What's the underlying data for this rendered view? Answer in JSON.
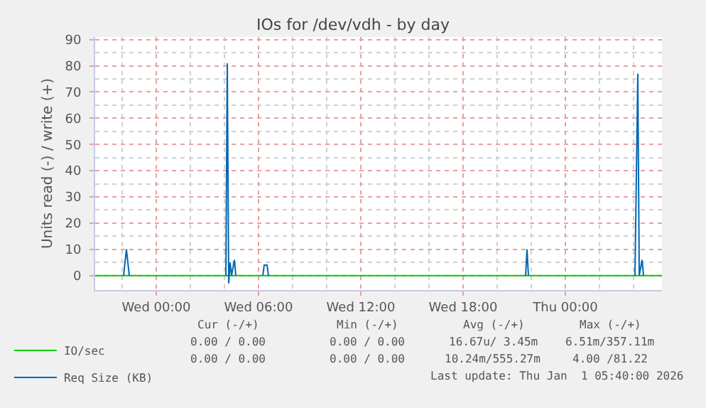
{
  "chart_data": {
    "type": "line",
    "title": "IOs for /dev/vdh - by day",
    "ylabel": "Units read (-) / write (+)",
    "series": [
      {
        "name": "IO/sec",
        "color": "#00cc00",
        "x": [
          "2025-12-30T20:25",
          "2026-01-01T05:40"
        ],
        "values": [
          0,
          0
        ]
      },
      {
        "name": "Req Size (KB)",
        "color": "#0066b3",
        "x": [
          "2025-12-30T22:05",
          "2025-12-30T22:15",
          "2025-12-30T22:25",
          "2025-12-30T23:00",
          "2025-12-31T04:05",
          "2025-12-31T04:10",
          "2025-12-31T04:15",
          "2025-12-31T04:20",
          "2025-12-31T04:25",
          "2025-12-31T04:35",
          "2025-12-31T04:40",
          "2025-12-31T05:00",
          "2025-12-31T06:15",
          "2025-12-31T06:20",
          "2025-12-31T06:30",
          "2025-12-31T06:35",
          "2025-12-31T07:00",
          "2025-12-31T21:40",
          "2025-12-31T21:45",
          "2025-12-31T21:50",
          "2025-12-31T22:00",
          "2026-01-01T04:05",
          "2026-01-01T04:15",
          "2026-01-01T04:20",
          "2026-01-01T04:30",
          "2026-01-01T04:35"
        ],
        "values": [
          0,
          10,
          0,
          null,
          0,
          81,
          -3,
          5,
          0,
          6,
          0,
          null,
          0,
          4,
          4,
          0,
          null,
          0,
          10,
          0,
          null,
          0,
          77,
          0,
          6,
          0
        ]
      }
    ],
    "xlim": [
      "2025-12-30T20:25",
      "2026-01-01T05:40"
    ],
    "xticks": [
      {
        "value": "2025-12-31T00:00",
        "label": "Wed 00:00"
      },
      {
        "value": "2025-12-31T06:00",
        "label": "Wed 06:00"
      },
      {
        "value": "2025-12-31T12:00",
        "label": "Wed 12:00"
      },
      {
        "value": "2025-12-31T18:00",
        "label": "Wed 18:00"
      },
      {
        "value": "2026-01-01T00:00",
        "label": "Thu 00:00"
      }
    ],
    "ylim": [
      -5.5,
      91
    ],
    "yticks": [
      0,
      10,
      20,
      30,
      40,
      50,
      60,
      70,
      80,
      90
    ],
    "grid": true,
    "legend": "bottom",
    "marker": "none",
    "line_style": "solid",
    "annotations": [
      "Cur (-/+)",
      "Min (-/+)",
      "Avg (-/+)",
      "Max (-/+)",
      "0.00 / 0.00",
      "0.00 / 0.00",
      "16.67u/ 3.45m",
      "6.51m/357.11m",
      "0.00 / 0.00",
      "0.00 / 0.00",
      "10.24m/555.27m",
      "4.00 /81.22",
      "Last update: Thu Jan  1 05:40:00 2026"
    ]
  }
}
